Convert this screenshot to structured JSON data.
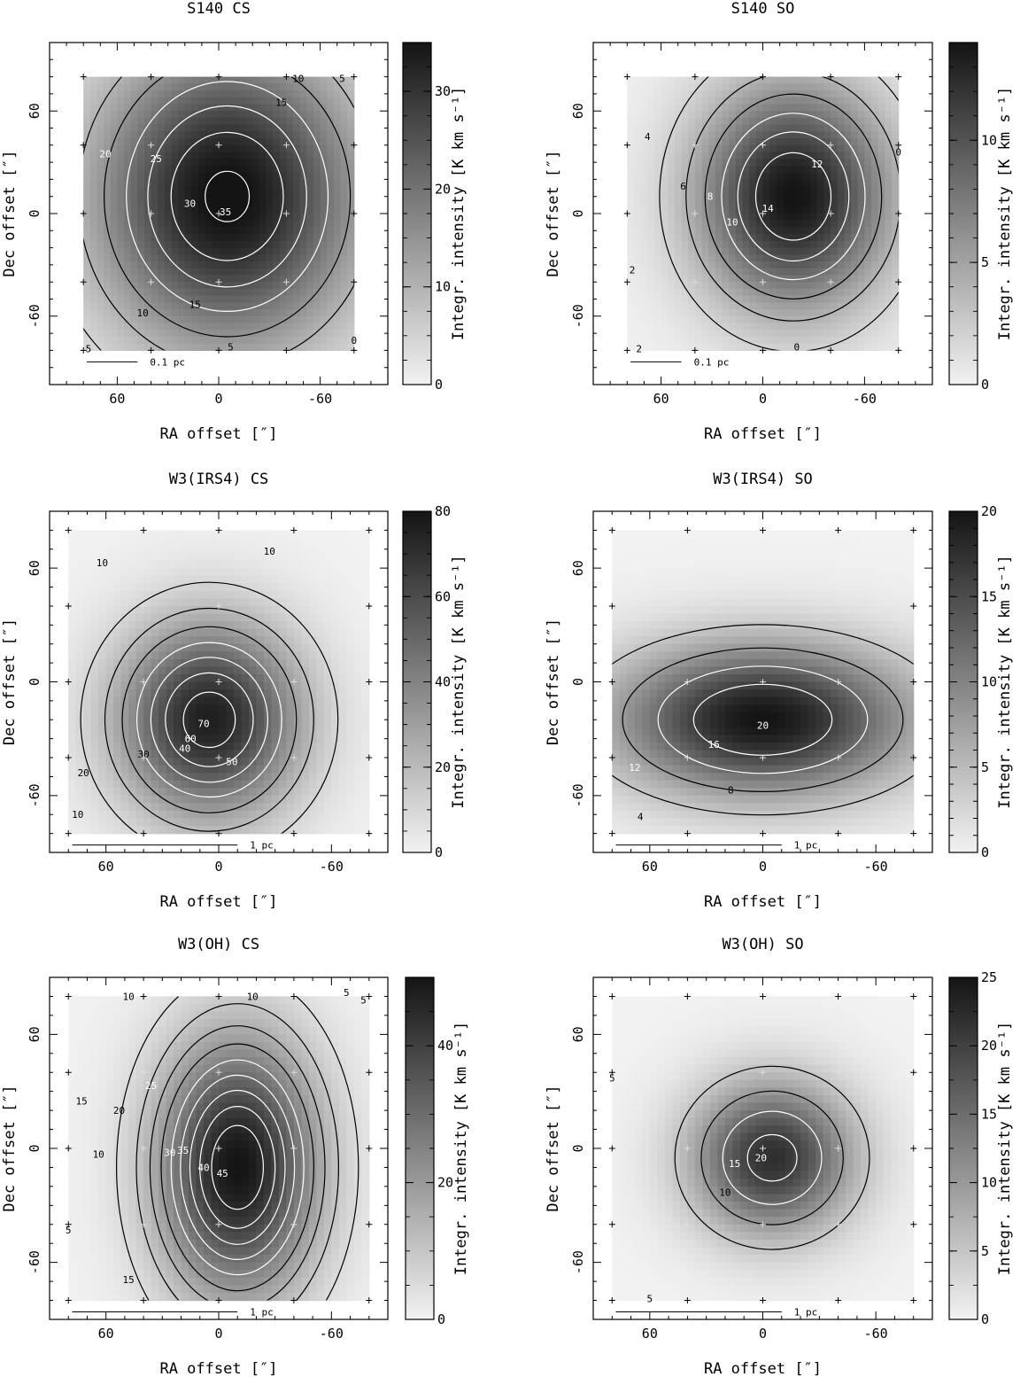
{
  "panels": [
    {
      "title": "S140   CS",
      "xlabel": "RA offset  [″]",
      "ylabel": "Dec offset  [″]",
      "cbar_label": "Integr. intensity  [K km s⁻¹]",
      "scalebar": "0.1 pc",
      "scalebar_span": 30,
      "xlim": [
        100,
        -100
      ],
      "ylim": [
        -100,
        100
      ],
      "x_ticks": [
        60,
        0,
        -60
      ],
      "y_ticks": [
        60,
        0,
        -60
      ],
      "cbar_range": [
        0,
        35
      ],
      "cbar_ticks": [
        0,
        10,
        20,
        30
      ],
      "grid": [
        80,
        40,
        0,
        -40,
        -80
      ],
      "mapext": 80,
      "peak": [
        -5,
        10,
        36
      ],
      "sigma": [
        55,
        62
      ],
      "contour_labels": [
        {
          "t": "5",
          "p": [
            77,
            -79
          ]
        },
        {
          "t": "5",
          "p": [
            -73,
            79
          ]
        },
        {
          "t": "5",
          "p": [
            -7,
            -78
          ]
        },
        {
          "t": "10",
          "p": [
            -47,
            79
          ]
        },
        {
          "t": "10",
          "p": [
            45,
            -58
          ]
        },
        {
          "t": "15",
          "p": [
            -37,
            65
          ]
        },
        {
          "t": "15",
          "p": [
            14,
            -53
          ]
        },
        {
          "t": "20",
          "p": [
            67,
            35
          ]
        },
        {
          "t": "25",
          "p": [
            37,
            32
          ]
        },
        {
          "t": "30",
          "p": [
            17,
            6
          ]
        },
        {
          "t": "35",
          "p": [
            -4,
            1
          ]
        },
        {
          "t": "0",
          "p": [
            -80,
            -74
          ]
        }
      ]
    },
    {
      "title": "S140   SO",
      "xlabel": "RA offset  [″]",
      "ylabel": "Dec offset  [″]",
      "cbar_label": "Integr. intensity  [K km s⁻¹]",
      "scalebar": "0.1 pc",
      "scalebar_span": 30,
      "xlim": [
        100,
        -100
      ],
      "ylim": [
        -100,
        100
      ],
      "x_ticks": [
        60,
        0,
        -60
      ],
      "y_ticks": [
        60,
        0,
        -60
      ],
      "cbar_range": [
        0,
        14
      ],
      "cbar_ticks": [
        0,
        5,
        10
      ],
      "grid": [
        80,
        40,
        0,
        -40,
        -80
      ],
      "mapext": 80,
      "peak": [
        -18,
        10,
        14
      ],
      "sigma": [
        40,
        46
      ],
      "contour_labels": [
        {
          "t": "4",
          "p": [
            68,
            45
          ]
        },
        {
          "t": "6",
          "p": [
            47,
            16
          ]
        },
        {
          "t": "8",
          "p": [
            31,
            10
          ]
        },
        {
          "t": "10",
          "p": [
            18,
            -5
          ]
        },
        {
          "t": "12",
          "p": [
            -32,
            29
          ]
        },
        {
          "t": "14",
          "p": [
            -3,
            3
          ]
        },
        {
          "t": "2",
          "p": [
            77,
            -33
          ]
        },
        {
          "t": "2",
          "p": [
            73,
            -79
          ]
        },
        {
          "t": "0",
          "p": [
            -80,
            36
          ]
        },
        {
          "t": "0",
          "p": [
            -20,
            -78
          ]
        }
      ]
    },
    {
      "title": "W3(IRS4)   CS",
      "xlabel": "RA offset  [″]",
      "ylabel": "Dec offset  [″]",
      "cbar_label": "Integr. intensity  [K km s⁻¹]",
      "scalebar": "1 pc",
      "scalebar_span": 88,
      "xlim": [
        90,
        -90
      ],
      "ylim": [
        -90,
        90
      ],
      "x_ticks": [
        60,
        0,
        -60
      ],
      "y_ticks": [
        60,
        0,
        -60
      ],
      "cbar_range": [
        0,
        80
      ],
      "cbar_ticks": [
        0,
        20,
        40,
        60,
        80
      ],
      "grid": [
        80,
        40,
        0,
        -40,
        -80
      ],
      "mapext": 80,
      "peak": [
        5,
        -20,
        76
      ],
      "sigma": [
        34,
        36
      ],
      "contour_labels": [
        {
          "t": "10",
          "p": [
            62,
            63
          ]
        },
        {
          "t": "10",
          "p": [
            -27,
            69
          ]
        },
        {
          "t": "10",
          "p": [
            75,
            -70
          ]
        },
        {
          "t": "20",
          "p": [
            72,
            -48
          ]
        },
        {
          "t": "30",
          "p": [
            40,
            -38
          ]
        },
        {
          "t": "40",
          "p": [
            18,
            -35
          ]
        },
        {
          "t": "50",
          "p": [
            -7,
            -42
          ]
        },
        {
          "t": "60",
          "p": [
            15,
            -30
          ]
        },
        {
          "t": "70",
          "p": [
            8,
            -22
          ]
        }
      ]
    },
    {
      "title": "W3(IRS4)   SO",
      "xlabel": "RA offset  [″]",
      "ylabel": "Dec offset  [″]",
      "cbar_label": "Integr. intensity  [K km s⁻¹]",
      "scalebar": "1 pc",
      "scalebar_span": 88,
      "xlim": [
        90,
        -90
      ],
      "ylim": [
        -90,
        90
      ],
      "x_ticks": [
        60,
        0,
        -60
      ],
      "y_ticks": [
        60,
        0,
        -60
      ],
      "cbar_range": [
        0,
        20
      ],
      "cbar_ticks": [
        0,
        5,
        10,
        15,
        20
      ],
      "grid": [
        80,
        40,
        0,
        -40,
        -80
      ],
      "mapext": 80,
      "peak": [
        0,
        -20,
        20
      ],
      "sigma": [
        55,
        28
      ],
      "contour_labels": [
        {
          "t": "4",
          "p": [
            65,
            -71
          ]
        },
        {
          "t": "8",
          "p": [
            17,
            -57
          ]
        },
        {
          "t": "12",
          "p": [
            68,
            -45
          ]
        },
        {
          "t": "16",
          "p": [
            26,
            -33
          ]
        },
        {
          "t": "20",
          "p": [
            0,
            -23
          ]
        }
      ]
    },
    {
      "title": "W3(OH)   CS",
      "xlabel": "RA offset  [″]",
      "ylabel": "Dec offset  [″]",
      "cbar_label": "Integr. intensity  [K km s⁻¹]",
      "scalebar": "1 pc",
      "scalebar_span": 88,
      "xlim": [
        90,
        -90
      ],
      "ylim": [
        -90,
        90
      ],
      "x_ticks": [
        60,
        0,
        -60
      ],
      "y_ticks": [
        60,
        0,
        -60
      ],
      "cbar_range": [
        0,
        50
      ],
      "cbar_ticks": [
        0,
        20,
        40
      ],
      "grid": [
        80,
        40,
        0,
        -40,
        -80
      ],
      "mapext": 80,
      "peak": [
        -10,
        -10,
        50
      ],
      "sigma": [
        30,
        48
      ],
      "contour_labels": [
        {
          "t": "10",
          "p": [
            48,
            80
          ]
        },
        {
          "t": "10",
          "p": [
            -18,
            80
          ]
        },
        {
          "t": "5",
          "p": [
            -68,
            82
          ]
        },
        {
          "t": "5",
          "p": [
            -77,
            78
          ]
        },
        {
          "t": "15",
          "p": [
            73,
            25
          ]
        },
        {
          "t": "10",
          "p": [
            64,
            -3
          ]
        },
        {
          "t": "5",
          "p": [
            80,
            -43
          ]
        },
        {
          "t": "15",
          "p": [
            48,
            -69
          ]
        },
        {
          "t": "20",
          "p": [
            53,
            20
          ]
        },
        {
          "t": "25",
          "p": [
            36,
            33
          ]
        },
        {
          "t": "30",
          "p": [
            26,
            -2
          ]
        },
        {
          "t": "35",
          "p": [
            19,
            -1
          ]
        },
        {
          "t": "40",
          "p": [
            8,
            -10
          ]
        },
        {
          "t": "45",
          "p": [
            -2,
            -13
          ]
        }
      ]
    },
    {
      "title": "W3(OH)   SO",
      "xlabel": "RA offset  [″]",
      "ylabel": "Dec offset  [″]",
      "cbar_label": "Integr. intensity  [K km s⁻¹]",
      "scalebar": "1 pc",
      "scalebar_span": 88,
      "xlim": [
        90,
        -90
      ],
      "ylim": [
        -90,
        90
      ],
      "x_ticks": [
        60,
        0,
        -60
      ],
      "y_ticks": [
        60,
        0,
        -60
      ],
      "cbar_range": [
        0,
        25
      ],
      "cbar_ticks": [
        0,
        5,
        10,
        15,
        20,
        25
      ],
      "grid": [
        80,
        40,
        0,
        -40,
        -80
      ],
      "mapext": 80,
      "peak": [
        -5,
        -5,
        22
      ],
      "sigma": [
        30,
        28
      ],
      "contour_labels": [
        {
          "t": "5",
          "p": [
            80,
            37
          ]
        },
        {
          "t": "5",
          "p": [
            60,
            -79
          ]
        },
        {
          "t": "10",
          "p": [
            20,
            -23
          ]
        },
        {
          "t": "15",
          "p": [
            15,
            -8
          ]
        },
        {
          "t": "20",
          "p": [
            1,
            -5
          ]
        }
      ]
    }
  ],
  "chart_data": [
    {
      "type": "heatmap",
      "title": "S140   CS",
      "xlabel": "RA offset  [″]",
      "ylabel": "Dec offset  [″]",
      "colorbar_label": "Integr. intensity  [K km s⁻¹]",
      "colorbar_range": [
        0,
        35
      ],
      "contour_levels": [
        0,
        5,
        10,
        15,
        20,
        25,
        30,
        35
      ],
      "peak_intensity": 36,
      "peak_position": [
        -5,
        10
      ],
      "scale_bar": "0.1 pc",
      "observed_grid_spacing": 40
    },
    {
      "type": "heatmap",
      "title": "S140   SO",
      "xlabel": "RA offset  [″]",
      "ylabel": "Dec offset  [″]",
      "colorbar_range": [
        0,
        14
      ],
      "contour_levels": [
        0,
        2,
        4,
        6,
        8,
        10,
        12,
        14
      ],
      "peak_intensity": 14,
      "peak_position": [
        -18,
        10
      ],
      "scale_bar": "0.1 pc"
    },
    {
      "type": "heatmap",
      "title": "W3(IRS4)   CS",
      "xlabel": "RA offset  [″]",
      "ylabel": "Dec offset  [″]",
      "colorbar_range": [
        0,
        80
      ],
      "contour_levels": [
        10,
        20,
        30,
        40,
        50,
        60,
        70
      ],
      "peak_intensity": 76,
      "peak_position": [
        5,
        -20
      ],
      "scale_bar": "1 pc"
    },
    {
      "type": "heatmap",
      "title": "W3(IRS4)   SO",
      "xlabel": "RA offset  [″]",
      "ylabel": "Dec offset  [″]",
      "colorbar_range": [
        0,
        20
      ],
      "contour_levels": [
        4,
        8,
        12,
        16,
        20
      ],
      "peak_intensity": 20,
      "peak_position": [
        0,
        -20
      ],
      "scale_bar": "1 pc"
    },
    {
      "type": "heatmap",
      "title": "W3(OH)   CS",
      "xlabel": "RA offset  [″]",
      "ylabel": "Dec offset  [″]",
      "colorbar_range": [
        0,
        50
      ],
      "contour_levels": [
        5,
        10,
        15,
        20,
        25,
        30,
        35,
        40,
        45
      ],
      "peak_intensity": 50,
      "peak_position": [
        -10,
        -10
      ],
      "scale_bar": "1 pc"
    },
    {
      "type": "heatmap",
      "title": "W3(OH)   SO",
      "xlabel": "RA offset  [″]",
      "ylabel": "Dec offset  [″]",
      "colorbar_range": [
        0,
        25
      ],
      "contour_levels": [
        5,
        10,
        15,
        20
      ],
      "peak_intensity": 22,
      "peak_position": [
        -5,
        -5
      ],
      "scale_bar": "1 pc"
    }
  ]
}
